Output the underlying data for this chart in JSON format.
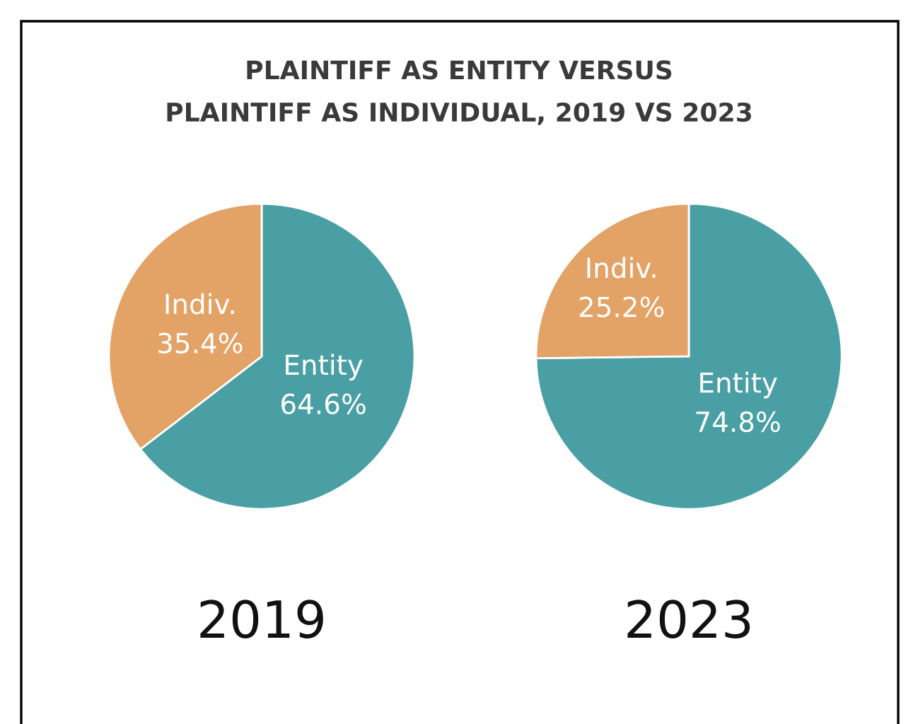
{
  "chart_data": [
    {
      "type": "pie",
      "title": "PLAINTIFF AS ENTITY VERSUS\nPLAINTIFF AS INDIVIDUAL, 2019 VS 2023",
      "xlabel": "2019",
      "categories": [
        "Entity",
        "Indiv."
      ],
      "values": [
        64.6,
        35.4
      ],
      "value_labels": [
        "64.6%",
        "35.4%"
      ],
      "colors": [
        "#4a9fa4",
        "#e3a266"
      ]
    },
    {
      "type": "pie",
      "xlabel": "2023",
      "categories": [
        "Entity",
        "Indiv."
      ],
      "values": [
        74.8,
        25.2
      ],
      "value_labels": [
        "74.8%",
        "25.2%"
      ],
      "colors": [
        "#4a9fa4",
        "#e3a266"
      ]
    }
  ]
}
